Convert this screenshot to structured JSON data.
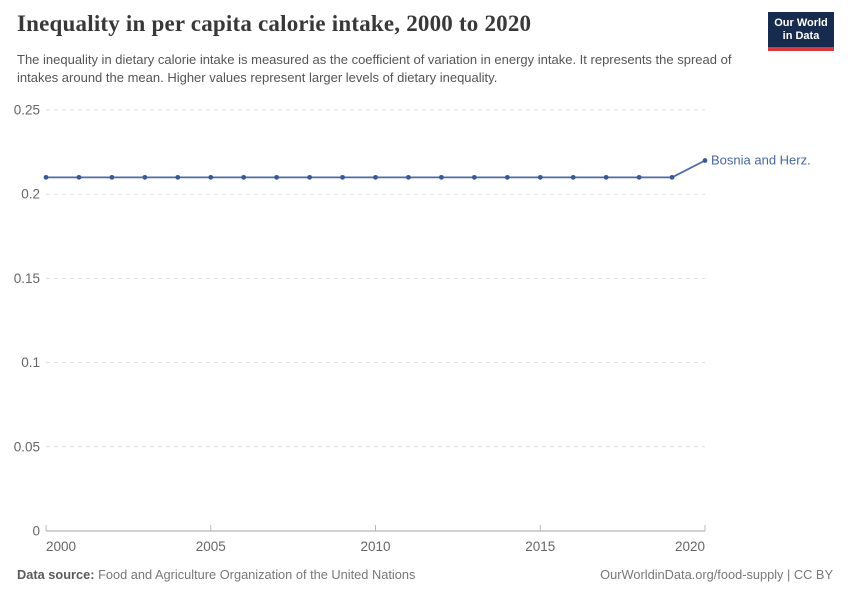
{
  "header": {
    "title": "Inequality in per capita calorie intake, 2000 to 2020",
    "subtitle": "The inequality in dietary calorie intake is measured as the coefficient of variation in energy intake. It represents the spread of intakes around the mean. Higher values represent larger levels of dietary inequality.",
    "logo": {
      "line1": "Our World",
      "line2": "in Data"
    }
  },
  "chart_data": {
    "type": "line",
    "title": "Inequality in per capita calorie intake, 2000 to 2020",
    "x": [
      2000,
      2001,
      2002,
      2003,
      2004,
      2005,
      2006,
      2007,
      2008,
      2009,
      2010,
      2011,
      2012,
      2013,
      2014,
      2015,
      2016,
      2017,
      2018,
      2019,
      2020
    ],
    "series": [
      {
        "name": "Bosnia and Herz.",
        "values": [
          0.21,
          0.21,
          0.21,
          0.21,
          0.21,
          0.21,
          0.21,
          0.21,
          0.21,
          0.21,
          0.21,
          0.21,
          0.21,
          0.21,
          0.21,
          0.21,
          0.21,
          0.21,
          0.21,
          0.21,
          0.22
        ]
      }
    ],
    "xlim": [
      2000,
      2020
    ],
    "ylim": [
      0,
      0.25
    ],
    "x_tick_labels": [
      "2000",
      "2005",
      "2010",
      "2015",
      "2020"
    ],
    "x_tick_values": [
      2000,
      2005,
      2010,
      2015,
      2020
    ],
    "y_tick_labels": [
      "0",
      "0.05",
      "0.1",
      "0.15",
      "0.2",
      "0.25"
    ],
    "y_tick_values": [
      0,
      0.05,
      0.1,
      0.15,
      0.2,
      0.25
    ],
    "grid": "horizontal-dashed",
    "legend": "entity-label-at-line-end",
    "entity_label": "Bosnia and Herz.",
    "xlabel": "",
    "ylabel": ""
  },
  "footer": {
    "datasource_label": "Data source:",
    "datasource_value": " Food and Agriculture Organization of the United Nations",
    "rights": "OurWorldinData.org/food-supply | CC BY"
  },
  "colors": {
    "line": "#4c6ba8",
    "marker": "#3a5894",
    "entity_label": "#4668a5",
    "logo_bg": "#162b4d",
    "logo_stripe": "#d7383c",
    "grid": "#dddddd",
    "axis": "#a6a6a6",
    "tick": "#b8b8b8",
    "tick_text": "#666666"
  }
}
